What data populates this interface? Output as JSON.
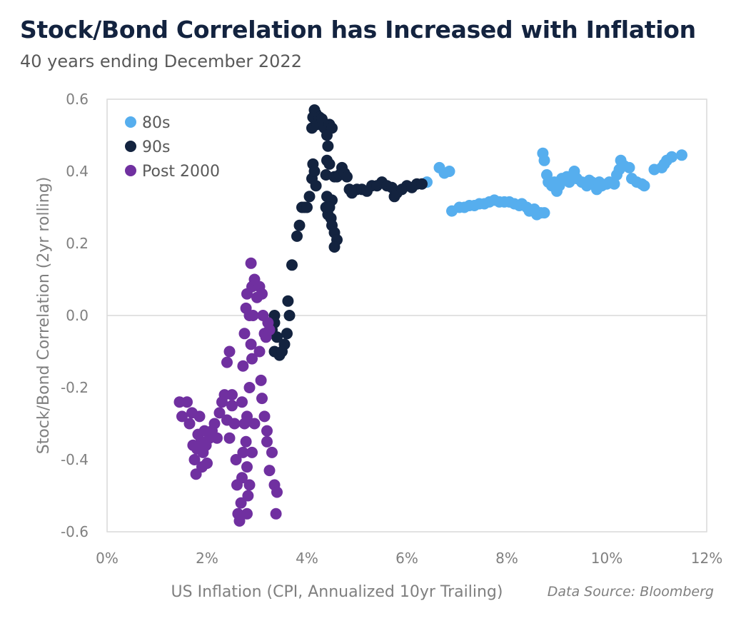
{
  "chart_data": {
    "type": "scatter",
    "title": "Stock/Bond Correlation has Increased with Inflation",
    "subtitle": "40 years ending December 2022",
    "xlabel": "US Inflation (CPI, Annualized 10yr Trailing)",
    "ylabel": "Stock/Bond Correlation (2yr rolling)",
    "source": "Data Source: Bloomberg",
    "xlim": [
      0,
      12
    ],
    "ylim": [
      -0.6,
      0.6
    ],
    "x_ticks": [
      0,
      2,
      4,
      6,
      8,
      10,
      12
    ],
    "x_tick_labels": [
      "0%",
      "2%",
      "4%",
      "6%",
      "8%",
      "10%",
      "12%"
    ],
    "y_ticks": [
      0.6,
      0.4,
      0.2,
      0.0,
      -0.2,
      -0.4,
      -0.6
    ],
    "y_tick_labels": [
      "0.6",
      "0.4",
      "0.2",
      "0.0",
      "-0.2",
      "-0.4",
      "-0.6"
    ],
    "grid": false,
    "zero_line": true,
    "legend_position": "top-left",
    "series": [
      {
        "name": "80s",
        "color": "#56aeee",
        "points": [
          [
            6.4,
            0.37
          ],
          [
            6.65,
            0.41
          ],
          [
            6.75,
            0.395
          ],
          [
            6.85,
            0.4
          ],
          [
            6.9,
            0.29
          ],
          [
            7.05,
            0.3
          ],
          [
            7.15,
            0.3
          ],
          [
            7.25,
            0.305
          ],
          [
            7.35,
            0.305
          ],
          [
            7.45,
            0.31
          ],
          [
            7.55,
            0.31
          ],
          [
            7.65,
            0.315
          ],
          [
            7.75,
            0.32
          ],
          [
            7.85,
            0.315
          ],
          [
            7.95,
            0.315
          ],
          [
            8.05,
            0.315
          ],
          [
            8.15,
            0.31
          ],
          [
            8.25,
            0.305
          ],
          [
            8.3,
            0.31
          ],
          [
            8.4,
            0.3
          ],
          [
            8.45,
            0.29
          ],
          [
            8.55,
            0.295
          ],
          [
            8.6,
            0.28
          ],
          [
            8.68,
            0.285
          ],
          [
            8.75,
            0.285
          ],
          [
            8.72,
            0.45
          ],
          [
            8.75,
            0.43
          ],
          [
            8.8,
            0.39
          ],
          [
            8.83,
            0.37
          ],
          [
            8.9,
            0.36
          ],
          [
            8.95,
            0.37
          ],
          [
            9.0,
            0.345
          ],
          [
            9.05,
            0.36
          ],
          [
            9.1,
            0.38
          ],
          [
            9.2,
            0.385
          ],
          [
            9.25,
            0.37
          ],
          [
            9.3,
            0.385
          ],
          [
            9.35,
            0.4
          ],
          [
            9.4,
            0.38
          ],
          [
            9.5,
            0.37
          ],
          [
            9.6,
            0.36
          ],
          [
            9.65,
            0.375
          ],
          [
            9.7,
            0.37
          ],
          [
            9.8,
            0.35
          ],
          [
            9.85,
            0.37
          ],
          [
            9.9,
            0.36
          ],
          [
            10.0,
            0.365
          ],
          [
            10.05,
            0.37
          ],
          [
            10.15,
            0.365
          ],
          [
            10.2,
            0.39
          ],
          [
            10.25,
            0.405
          ],
          [
            10.28,
            0.43
          ],
          [
            10.35,
            0.415
          ],
          [
            10.45,
            0.41
          ],
          [
            10.5,
            0.38
          ],
          [
            10.6,
            0.37
          ],
          [
            10.7,
            0.365
          ],
          [
            10.75,
            0.36
          ],
          [
            10.95,
            0.405
          ],
          [
            11.1,
            0.41
          ],
          [
            11.15,
            0.42
          ],
          [
            11.2,
            0.43
          ],
          [
            11.3,
            0.44
          ],
          [
            11.5,
            0.445
          ]
        ]
      },
      {
        "name": "90s",
        "color": "#13233f",
        "points": [
          [
            3.35,
            0.0
          ],
          [
            3.3,
            -0.04
          ],
          [
            3.35,
            -0.02
          ],
          [
            3.4,
            -0.06
          ],
          [
            3.35,
            -0.1
          ],
          [
            3.45,
            -0.11
          ],
          [
            3.5,
            -0.1
          ],
          [
            3.55,
            -0.08
          ],
          [
            3.6,
            -0.05
          ],
          [
            3.65,
            0.0
          ],
          [
            3.62,
            0.04
          ],
          [
            3.7,
            0.14
          ],
          [
            3.8,
            0.22
          ],
          [
            3.85,
            0.25
          ],
          [
            3.9,
            0.3
          ],
          [
            3.95,
            0.3
          ],
          [
            4.0,
            0.3
          ],
          [
            4.05,
            0.33
          ],
          [
            4.1,
            0.38
          ],
          [
            4.12,
            0.42
          ],
          [
            4.15,
            0.4
          ],
          [
            4.18,
            0.36
          ],
          [
            4.1,
            0.52
          ],
          [
            4.12,
            0.55
          ],
          [
            4.15,
            0.57
          ],
          [
            4.18,
            0.56
          ],
          [
            4.2,
            0.53
          ],
          [
            4.25,
            0.55
          ],
          [
            4.3,
            0.545
          ],
          [
            4.35,
            0.52
          ],
          [
            4.4,
            0.5
          ],
          [
            4.45,
            0.53
          ],
          [
            4.5,
            0.52
          ],
          [
            4.42,
            0.47
          ],
          [
            4.4,
            0.43
          ],
          [
            4.45,
            0.42
          ],
          [
            4.38,
            0.39
          ],
          [
            4.4,
            0.33
          ],
          [
            4.38,
            0.3
          ],
          [
            4.42,
            0.28
          ],
          [
            4.48,
            0.27
          ],
          [
            4.5,
            0.25
          ],
          [
            4.55,
            0.23
          ],
          [
            4.6,
            0.21
          ],
          [
            4.55,
            0.19
          ],
          [
            4.5,
            0.32
          ],
          [
            4.45,
            0.3
          ],
          [
            4.55,
            0.385
          ],
          [
            4.6,
            0.385
          ],
          [
            4.65,
            0.39
          ],
          [
            4.7,
            0.41
          ],
          [
            4.75,
            0.395
          ],
          [
            4.8,
            0.385
          ],
          [
            4.85,
            0.35
          ],
          [
            4.9,
            0.34
          ],
          [
            5.0,
            0.35
          ],
          [
            5.1,
            0.35
          ],
          [
            5.2,
            0.345
          ],
          [
            5.3,
            0.36
          ],
          [
            5.4,
            0.36
          ],
          [
            5.5,
            0.37
          ],
          [
            5.6,
            0.36
          ],
          [
            5.7,
            0.355
          ],
          [
            5.75,
            0.33
          ],
          [
            5.8,
            0.34
          ],
          [
            5.9,
            0.35
          ],
          [
            6.0,
            0.36
          ],
          [
            6.1,
            0.355
          ],
          [
            6.2,
            0.365
          ],
          [
            6.3,
            0.365
          ]
        ]
      },
      {
        "name": "Post 2000",
        "color": "#7030a0",
        "points": [
          [
            1.45,
            -0.24
          ],
          [
            1.5,
            -0.28
          ],
          [
            1.6,
            -0.24
          ],
          [
            1.65,
            -0.3
          ],
          [
            1.7,
            -0.27
          ],
          [
            1.72,
            -0.36
          ],
          [
            1.75,
            -0.4
          ],
          [
            1.78,
            -0.44
          ],
          [
            1.8,
            -0.37
          ],
          [
            1.82,
            -0.33
          ],
          [
            1.85,
            -0.28
          ],
          [
            1.88,
            -0.35
          ],
          [
            1.9,
            -0.42
          ],
          [
            1.92,
            -0.38
          ],
          [
            1.95,
            -0.32
          ],
          [
            1.98,
            -0.36
          ],
          [
            2.0,
            -0.41
          ],
          [
            2.05,
            -0.34
          ],
          [
            2.1,
            -0.32
          ],
          [
            2.15,
            -0.3
          ],
          [
            2.2,
            -0.34
          ],
          [
            2.25,
            -0.27
          ],
          [
            2.3,
            -0.24
          ],
          [
            2.35,
            -0.22
          ],
          [
            2.4,
            -0.29
          ],
          [
            2.45,
            -0.34
          ],
          [
            2.5,
            -0.22
          ],
          [
            2.4,
            -0.13
          ],
          [
            2.45,
            -0.1
          ],
          [
            2.5,
            -0.25
          ],
          [
            2.55,
            -0.3
          ],
          [
            2.58,
            -0.4
          ],
          [
            2.6,
            -0.47
          ],
          [
            2.62,
            -0.55
          ],
          [
            2.65,
            -0.57
          ],
          [
            2.68,
            -0.52
          ],
          [
            2.7,
            -0.45
          ],
          [
            2.72,
            -0.38
          ],
          [
            2.75,
            -0.3
          ],
          [
            2.7,
            -0.24
          ],
          [
            2.72,
            -0.14
          ],
          [
            2.75,
            -0.05
          ],
          [
            2.78,
            0.02
          ],
          [
            2.8,
            0.06
          ],
          [
            2.85,
            0.0
          ],
          [
            2.88,
            -0.08
          ],
          [
            2.9,
            -0.12
          ],
          [
            2.85,
            -0.2
          ],
          [
            2.8,
            -0.28
          ],
          [
            2.78,
            -0.35
          ],
          [
            2.8,
            -0.42
          ],
          [
            2.82,
            -0.5
          ],
          [
            2.8,
            -0.55
          ],
          [
            2.85,
            -0.47
          ],
          [
            2.9,
            -0.38
          ],
          [
            2.95,
            -0.3
          ],
          [
            2.92,
            0.0
          ],
          [
            2.9,
            0.08
          ],
          [
            2.88,
            0.145
          ],
          [
            2.95,
            0.1
          ],
          [
            3.0,
            0.05
          ],
          [
            3.05,
            0.08
          ],
          [
            3.1,
            0.06
          ],
          [
            3.12,
            0.0
          ],
          [
            3.15,
            -0.05
          ],
          [
            3.05,
            -0.1
          ],
          [
            3.08,
            -0.18
          ],
          [
            3.1,
            -0.23
          ],
          [
            3.15,
            -0.28
          ],
          [
            3.2,
            -0.35
          ],
          [
            3.25,
            -0.43
          ],
          [
            3.3,
            -0.38
          ],
          [
            3.35,
            -0.47
          ],
          [
            3.4,
            -0.49
          ],
          [
            3.38,
            -0.55
          ],
          [
            3.2,
            -0.32
          ],
          [
            3.18,
            -0.06
          ],
          [
            3.22,
            -0.02
          ],
          [
            3.25,
            -0.04
          ]
        ]
      }
    ]
  }
}
